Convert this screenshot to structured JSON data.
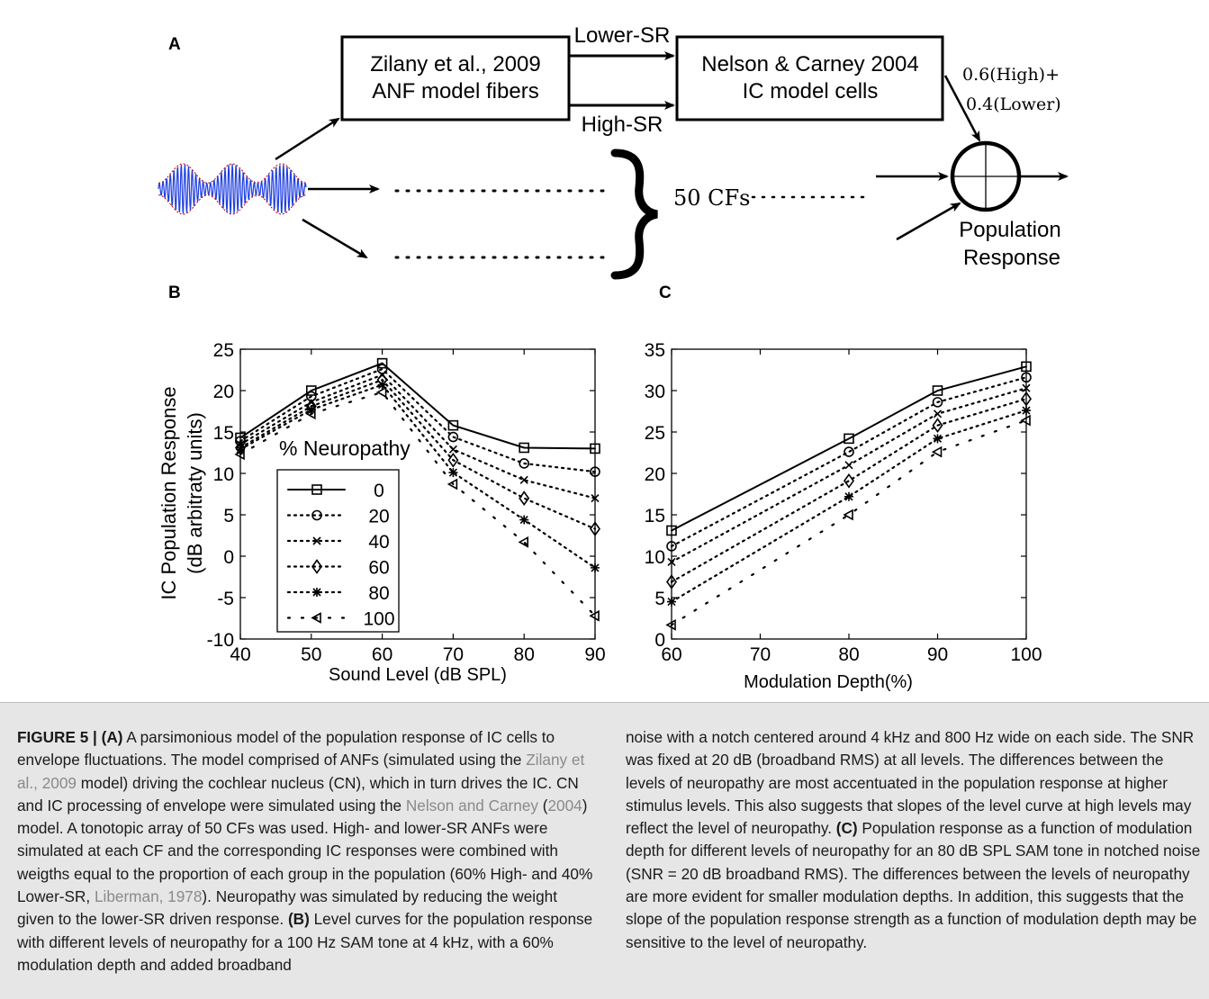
{
  "diagram": {
    "panel_label": "A",
    "box_left": [
      "Zilany et al., 2009",
      "ANF model fibers"
    ],
    "box_right": [
      "Nelson & Carney 2004",
      "IC model cells"
    ],
    "arrow_top_label": "Lower-SR",
    "arrow_bottom_label": "High-SR",
    "weights": [
      "0.6(High)+",
      "0.4(Lower)"
    ],
    "cf_label": "50 CFs",
    "output_label": [
      "Population",
      "Response"
    ],
    "colors": {
      "envelope": "#cc0000",
      "carrier": "#1f3fe0"
    }
  },
  "chart_data": [
    {
      "panel_label": "B",
      "type": "line",
      "x": [
        40,
        50,
        60,
        70,
        80,
        90
      ],
      "xlim": [
        40,
        90
      ],
      "ylim": [
        -10,
        25
      ],
      "xticks": [
        40,
        50,
        60,
        70,
        80,
        90
      ],
      "yticks": [
        -10,
        -5,
        0,
        5,
        10,
        15,
        20,
        25
      ],
      "xlabel": "Sound Level (dB SPL)",
      "ylabel": [
        "IC Population Response",
        "(dB arbitraty units)"
      ],
      "legend_title": "% Neuropathy",
      "legend_position": "lower-left",
      "grid": false,
      "series": [
        {
          "name": "0",
          "marker": "square",
          "line": "solid",
          "values": [
            14.3,
            20.0,
            23.3,
            15.8,
            13.1,
            13.0
          ]
        },
        {
          "name": "20",
          "marker": "circle",
          "line": "dotted",
          "values": [
            13.9,
            19.3,
            22.6,
            14.4,
            11.2,
            10.2
          ]
        },
        {
          "name": "40",
          "marker": "x",
          "line": "dotted",
          "values": [
            13.5,
            18.6,
            21.9,
            12.9,
            9.2,
            7.0
          ]
        },
        {
          "name": "60",
          "marker": "diamond",
          "line": "dotted",
          "values": [
            13.1,
            18.1,
            21.3,
            11.6,
            7.0,
            3.3
          ]
        },
        {
          "name": "80",
          "marker": "asterisk",
          "line": "dotted",
          "values": [
            12.9,
            17.7,
            20.7,
            10.1,
            4.4,
            -1.4
          ]
        },
        {
          "name": "100",
          "marker": "triangle",
          "line": "dotted",
          "values": [
            12.3,
            17.2,
            19.8,
            8.7,
            1.7,
            -7.2
          ]
        }
      ]
    },
    {
      "panel_label": "C",
      "type": "line",
      "x": [
        60,
        80,
        90,
        100
      ],
      "xlim": [
        60,
        100
      ],
      "ylim": [
        0,
        35
      ],
      "xticks": [
        60,
        70,
        80,
        90,
        100
      ],
      "yticks": [
        0,
        5,
        10,
        15,
        20,
        25,
        30,
        35
      ],
      "xlabel": "Modulation Depth(%)",
      "ylabel": "",
      "grid": false,
      "series": [
        {
          "name": "0",
          "marker": "square",
          "line": "solid",
          "values": [
            13.1,
            24.2,
            30.0,
            32.9
          ]
        },
        {
          "name": "20",
          "marker": "circle",
          "line": "dotted",
          "values": [
            11.2,
            22.6,
            28.6,
            31.6
          ]
        },
        {
          "name": "40",
          "marker": "x",
          "line": "dotted",
          "values": [
            9.3,
            21.0,
            27.2,
            30.3
          ]
        },
        {
          "name": "60",
          "marker": "diamond",
          "line": "dotted",
          "values": [
            6.9,
            19.1,
            25.8,
            29.0
          ]
        },
        {
          "name": "80",
          "marker": "asterisk",
          "line": "dotted",
          "values": [
            4.5,
            17.2,
            24.2,
            27.6
          ]
        },
        {
          "name": "100",
          "marker": "triangle",
          "line": "dotted",
          "values": [
            1.7,
            15.0,
            22.6,
            26.4
          ]
        }
      ]
    }
  ],
  "caption": {
    "col1": {
      "figure_label": "FIGURE 5 | ",
      "panel_a": "(A)",
      "text_a1": " A parsimonious model of the population response of IC cells to envelope fluctuations. The model comprised of ANFs (simulated using the ",
      "cite_zilany": "Zilany et al., 2009",
      "text_a2": " model) driving the cochlear nucleus (CN), which in turn drives the IC. CN and IC processing of envelope were simulated using the ",
      "cite_nelson": "Nelson and Carney",
      "text_paren_open": " (",
      "cite_year": "2004",
      "text_a3": ") model. A tonotopic array of 50 CFs was used. High- and lower-SR ANFs were simulated at each CF and the corresponding IC responses were combined with weigths equal to the proportion of each group in the population (60% High- and 40% Lower-SR, ",
      "cite_liberman": "Liberman, 1978",
      "text_a4": "). Neuropathy was simulated by reducing the weight given to the lower-SR driven response. ",
      "panel_b": "(B)",
      "text_b1": " Level curves for the population response with different levels of neuropathy for a 100 Hz SAM tone at 4 kHz, with a 60% modulation depth and added broadband"
    },
    "col2": {
      "text_b2": "noise with a notch centered around 4 kHz and 800 Hz wide on each side. The SNR was fixed at 20 dB (broadband RMS) at all levels. The differences between the levels of neuropathy are most accentuated in the population response at higher stimulus levels. This also suggests that slopes of the level curve at high levels may reflect the level of neuropathy. ",
      "panel_c": "(C)",
      "text_c1": " Population response as a function of modulation depth for different levels of neuropathy for an 80 dB SPL SAM tone in notched noise (SNR = 20 dB broadband RMS). The differences between the levels of neuropathy are more evident for smaller modulation depths. In addition, this suggests that the slope of the population response strength as a function of modulation depth may be sensitive to the level of neuropathy."
    }
  }
}
